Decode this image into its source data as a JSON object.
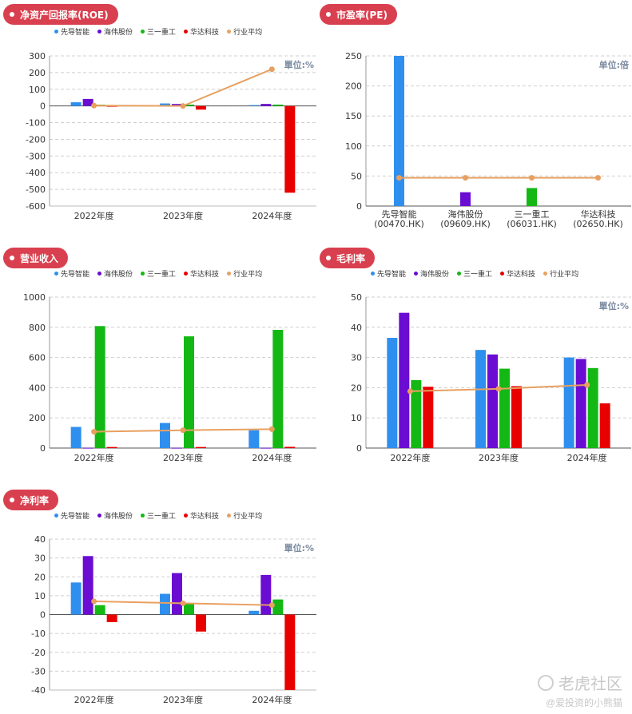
{
  "colors": {
    "series": [
      "#2f8fef",
      "#6a0cd2",
      "#14b814",
      "#e80000",
      "#e8a060"
    ],
    "title_bg": "#d9404f"
  },
  "legend_labels": [
    "先导智能",
    "海伟股份",
    "三一重工",
    "华达科技",
    "行业平均"
  ],
  "watermark": {
    "brand": "老虎社区",
    "handle": "@爱投资的小熊猫"
  },
  "chart_data": [
    {
      "id": "roe",
      "type": "bar",
      "title": "净资产回报率(ROE)",
      "unit_label": "單位:%",
      "categories": [
        "2022年度",
        "2023年度",
        "2024年度"
      ],
      "ylim": [
        -600,
        300
      ],
      "yticks": [
        -600,
        -500,
        -400,
        -300,
        -200,
        -100,
        0,
        100,
        200,
        300
      ],
      "grid": true,
      "series": [
        {
          "name": "先导智能",
          "values": [
            22,
            15,
            5
          ]
        },
        {
          "name": "海伟股份",
          "values": [
            42,
            12,
            12
          ]
        },
        {
          "name": "三一重工",
          "values": [
            8,
            8,
            8
          ]
        },
        {
          "name": "华达科技",
          "values": [
            -5,
            -22,
            -520
          ]
        }
      ],
      "line": {
        "name": "行业平均",
        "values": [
          2,
          0,
          220
        ]
      }
    },
    {
      "id": "pe",
      "type": "bar",
      "title": "市盈率(PE)",
      "unit_label": "单位:倍",
      "categories": [
        "先导智能\n(00470.HK)",
        "海伟股份\n(09609.HK)",
        "三一重工\n(06031.HK)",
        "华达科技\n(02650.HK)"
      ],
      "ylim": [
        0,
        250
      ],
      "yticks": [
        0,
        50,
        100,
        150,
        200,
        250
      ],
      "grid": true,
      "bars": [
        250,
        23,
        30,
        0
      ],
      "line": {
        "name": "行业平均",
        "values": [
          47,
          47,
          47,
          47
        ]
      }
    },
    {
      "id": "revenue",
      "type": "bar",
      "title": "营业收入",
      "unit_label": "",
      "categories": [
        "2022年度",
        "2023年度",
        "2024年度"
      ],
      "ylim": [
        0,
        1000
      ],
      "yticks": [
        0,
        200,
        400,
        600,
        800,
        1000
      ],
      "grid": true,
      "series": [
        {
          "name": "先导智能",
          "values": [
            140,
            166,
            118
          ]
        },
        {
          "name": "海伟股份",
          "values": [
            2,
            2,
            2
          ]
        },
        {
          "name": "三一重工",
          "values": [
            808,
            740,
            783
          ]
        },
        {
          "name": "华达科技",
          "values": [
            7,
            7,
            8
          ]
        }
      ],
      "line": {
        "name": "行业平均",
        "values": [
          108,
          118,
          125
        ]
      }
    },
    {
      "id": "gross_margin",
      "type": "bar",
      "title": "毛利率",
      "unit_label": "單位:%",
      "categories": [
        "2022年度",
        "2023年度",
        "2024年度"
      ],
      "ylim": [
        0,
        50
      ],
      "yticks": [
        0,
        10,
        20,
        30,
        40,
        50
      ],
      "grid": true,
      "series": [
        {
          "name": "先导智能",
          "values": [
            36.5,
            32.5,
            30
          ]
        },
        {
          "name": "海伟股份",
          "values": [
            44.8,
            31,
            29.5
          ]
        },
        {
          "name": "三一重工",
          "values": [
            22.5,
            26.3,
            26.5
          ]
        },
        {
          "name": "华达科技",
          "values": [
            20.3,
            20.5,
            14.8
          ]
        }
      ],
      "line": {
        "name": "行业平均",
        "values": [
          18.8,
          19.6,
          20.9
        ]
      }
    },
    {
      "id": "net_margin",
      "type": "bar",
      "title": "净利率",
      "unit_label": "單位:%",
      "categories": [
        "2022年度",
        "2023年度",
        "2024年度"
      ],
      "ylim": [
        -40,
        40
      ],
      "yticks": [
        -40,
        -30,
        -20,
        -10,
        0,
        10,
        20,
        30,
        40
      ],
      "grid": true,
      "series": [
        {
          "name": "先导智能",
          "values": [
            17,
            11,
            2
          ]
        },
        {
          "name": "海伟股份",
          "values": [
            31,
            22,
            21
          ]
        },
        {
          "name": "三一重工",
          "values": [
            5,
            6,
            8
          ]
        },
        {
          "name": "华达科技",
          "values": [
            -4,
            -9,
            -40
          ]
        }
      ],
      "line": {
        "name": "行业平均",
        "values": [
          7,
          6,
          5
        ]
      }
    }
  ]
}
